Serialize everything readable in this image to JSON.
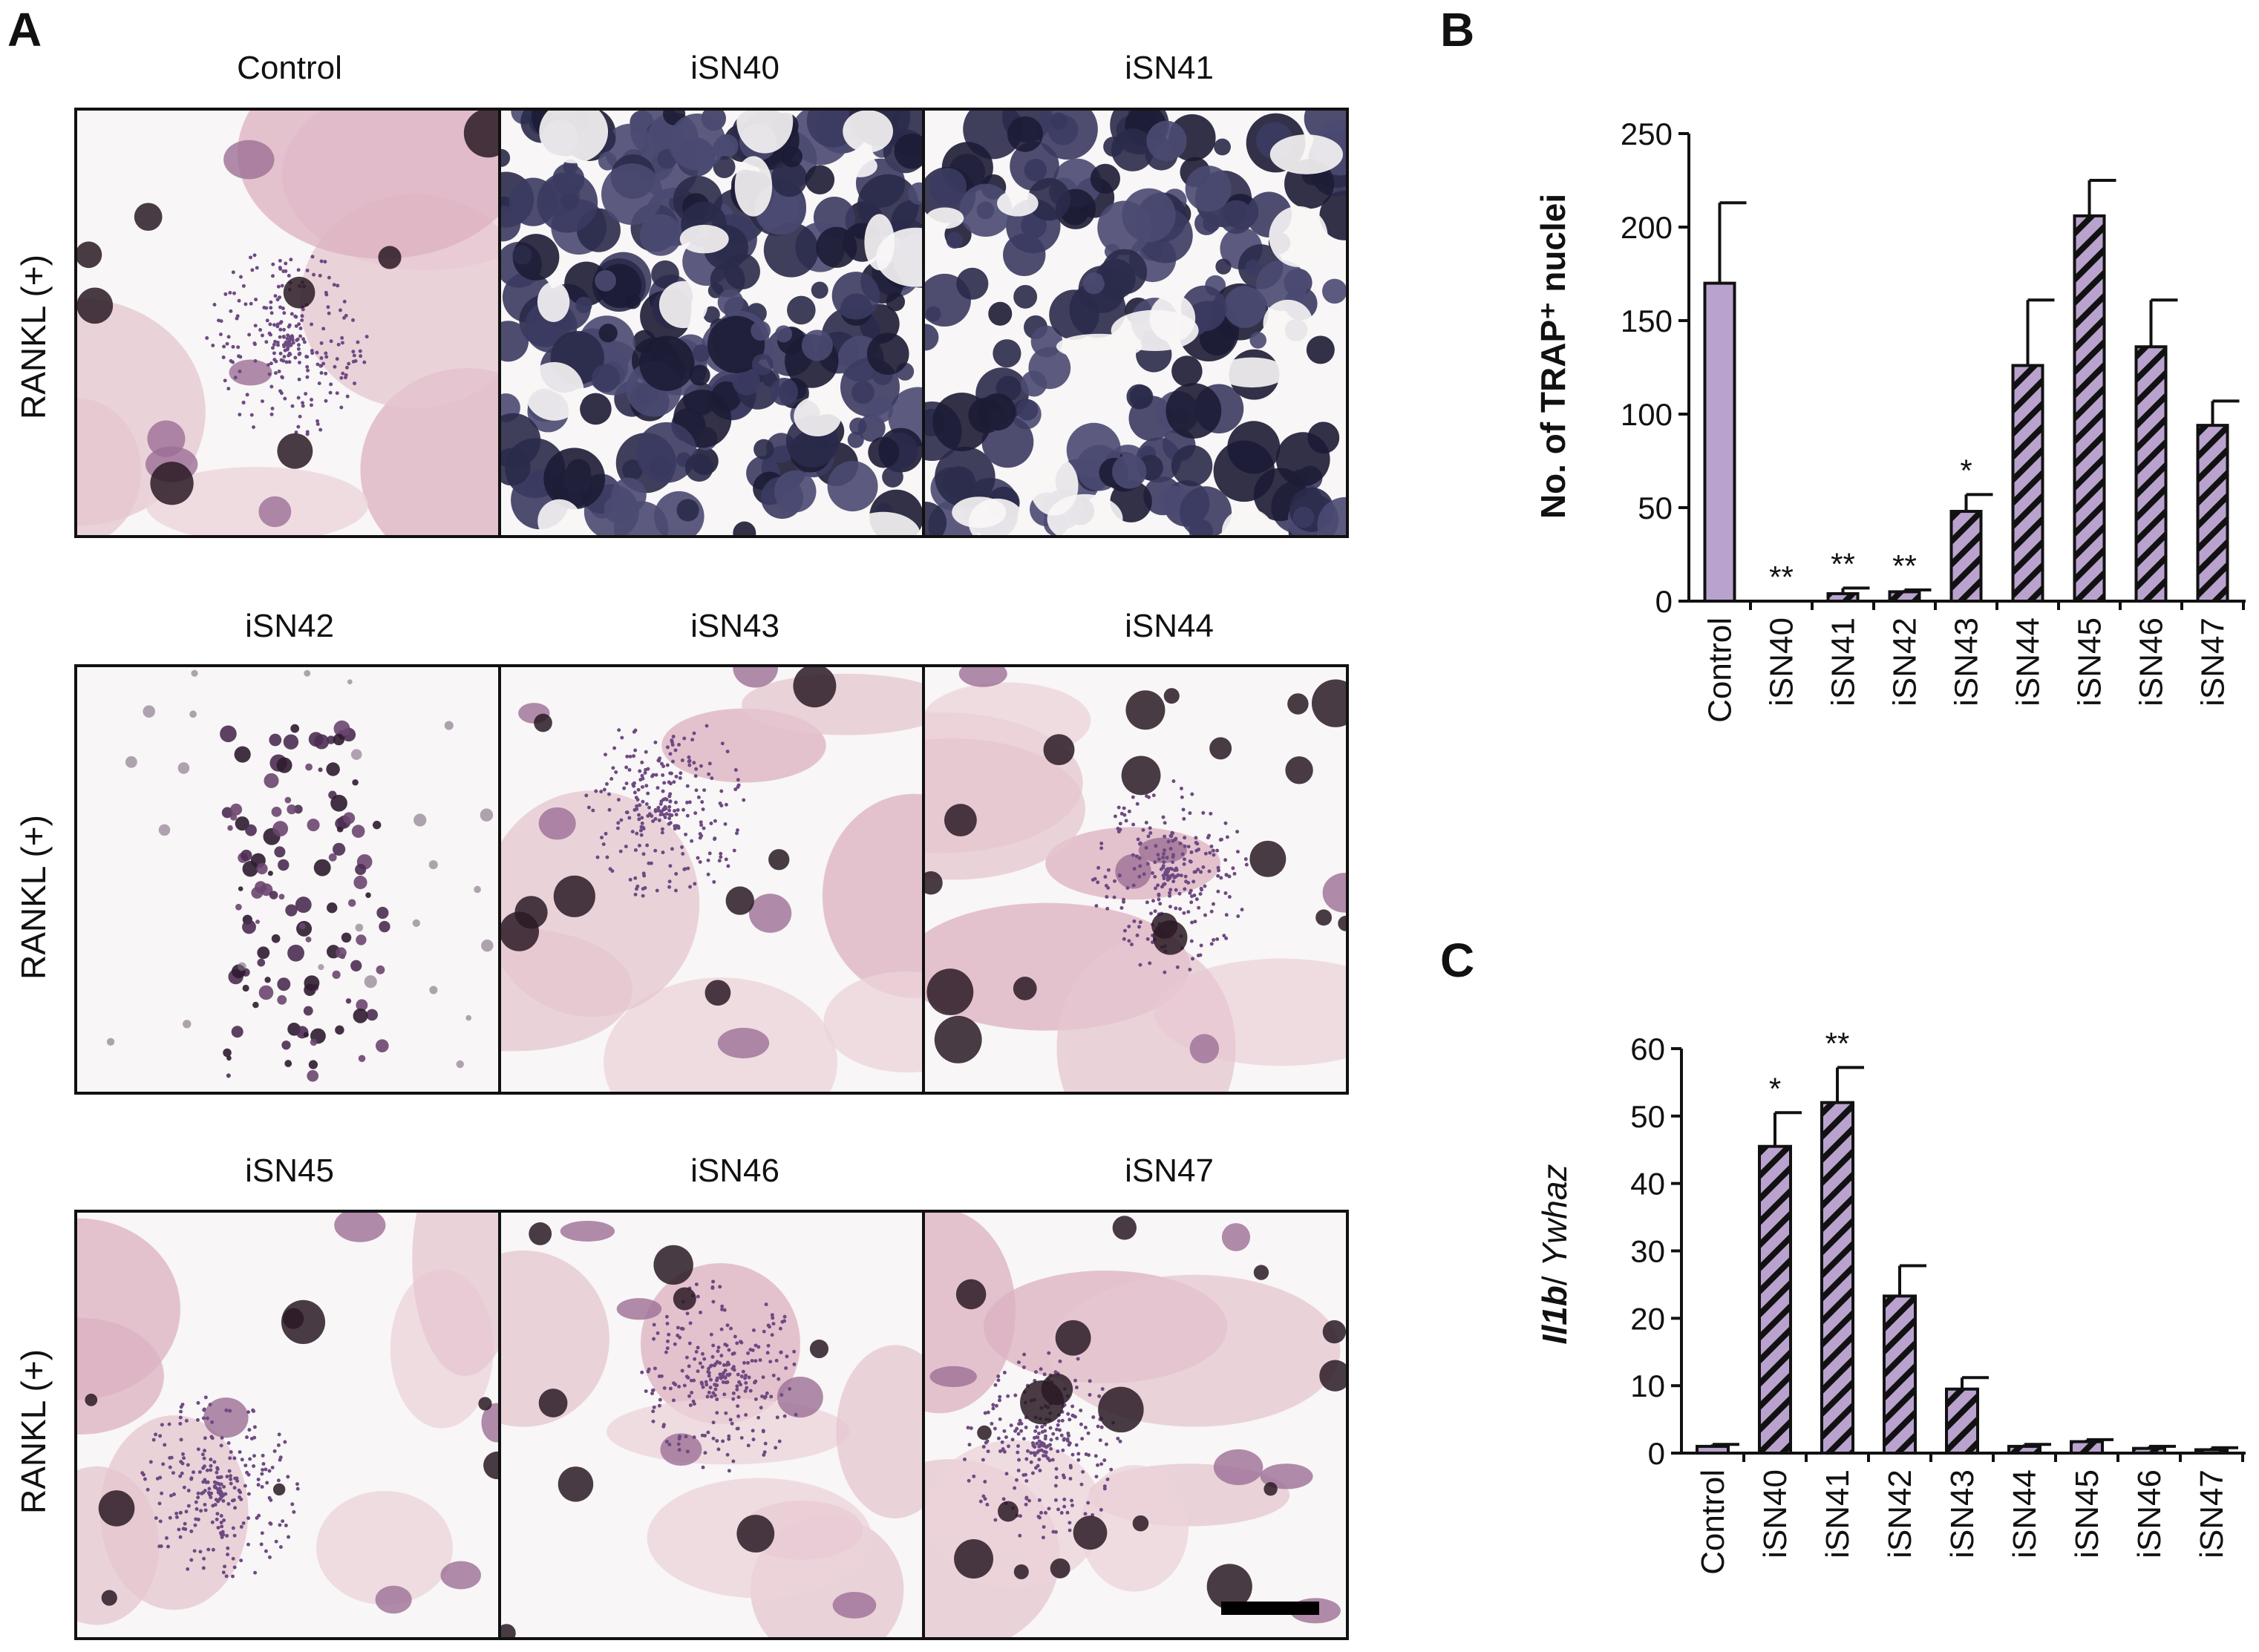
{
  "panelA": {
    "letter": "A",
    "row_label": "RANKL (+)",
    "images": [
      {
        "label": "Control",
        "style": "pink"
      },
      {
        "label": "iSN40",
        "style": "dark"
      },
      {
        "label": "iSN41",
        "style": "dark-light"
      },
      {
        "label": "iSN42",
        "style": "sparse"
      },
      {
        "label": "iSN43",
        "style": "pink"
      },
      {
        "label": "iSN44",
        "style": "pink-dark"
      },
      {
        "label": "iSN45",
        "style": "pink"
      },
      {
        "label": "iSN46",
        "style": "pink"
      },
      {
        "label": "iSN47",
        "style": "pink-dark"
      }
    ]
  },
  "chart_data": [
    {
      "id": "B",
      "letter": "B",
      "type": "bar",
      "categories": [
        "Control",
        "iSN40",
        "iSN41",
        "iSN42",
        "iSN43",
        "iSN44",
        "iSN45",
        "iSN46",
        "iSN47"
      ],
      "values": [
        170,
        0,
        4,
        5,
        48,
        126,
        206,
        136,
        94
      ],
      "errors": [
        43,
        0,
        3,
        1,
        9,
        35,
        19,
        25,
        13
      ],
      "significance": [
        "",
        "**",
        "**",
        "**",
        "*",
        "",
        "",
        "",
        ""
      ],
      "hatched": [
        false,
        true,
        true,
        true,
        true,
        true,
        true,
        true,
        true
      ],
      "ylabel": "No. of TRAP⁺ nuclei",
      "ylim": [
        0,
        250
      ],
      "yticks": [
        0,
        50,
        100,
        150,
        200,
        250
      ],
      "colors": {
        "bar": "#b9a3ce",
        "hatch": "#111111"
      }
    },
    {
      "id": "C",
      "letter": "C",
      "type": "bar",
      "categories": [
        "Control",
        "iSN40",
        "iSN41",
        "iSN42",
        "iSN43",
        "iSN44",
        "iSN45",
        "iSN46",
        "iSN47"
      ],
      "values": [
        1,
        45.5,
        52,
        23.3,
        9.5,
        1,
        1.7,
        0.7,
        0.5
      ],
      "errors": [
        0.3,
        5,
        5.2,
        4.5,
        1.7,
        0.3,
        0.3,
        0.3,
        0.3
      ],
      "significance": [
        "",
        "*",
        "**",
        "",
        "",
        "",
        "",
        "",
        ""
      ],
      "hatched": [
        false,
        true,
        true,
        true,
        true,
        true,
        true,
        true,
        true
      ],
      "ylabel_gene": "Il1b",
      "ylabel_sep": "/ ",
      "ylabel_ref": "Ywhaz",
      "ylim": [
        0,
        60
      ],
      "yticks": [
        0,
        10,
        20,
        30,
        40,
        50,
        60
      ],
      "colors": {
        "bar": "#b9a3ce",
        "hatch": "#111111"
      }
    }
  ]
}
